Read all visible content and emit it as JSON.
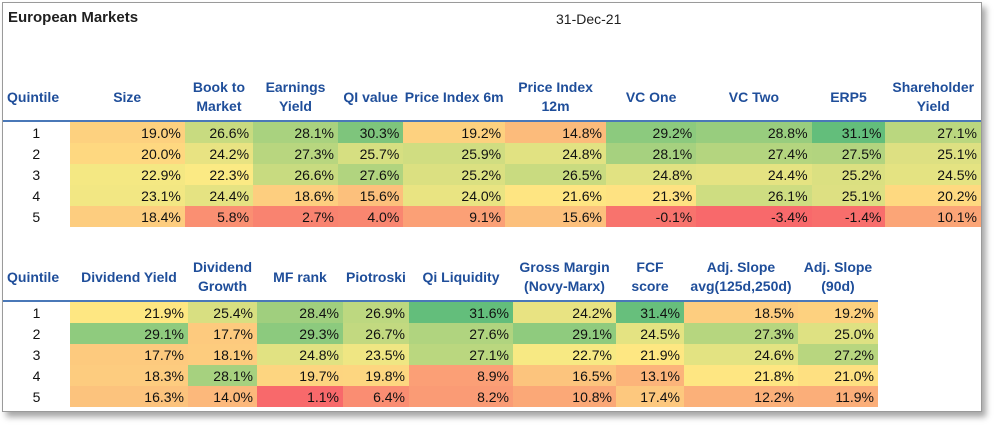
{
  "title": "European Markets",
  "date": "31-Dec-21",
  "table1": {
    "headers": [
      "Quintile",
      "Size",
      "Book to Market",
      "Earnings Yield",
      "QI value",
      "Price Index 6m",
      "Price Index 12m",
      "VC One",
      "VC Two",
      "ERP5",
      "Shareholder Yield"
    ],
    "rows": [
      {
        "q": "1",
        "cells": [
          {
            "v": "19.0%",
            "c": "#fdd17f"
          },
          {
            "v": "26.6%",
            "c": "#c8db80"
          },
          {
            "v": "28.1%",
            "c": "#a9d27f"
          },
          {
            "v": "30.3%",
            "c": "#7ec57c"
          },
          {
            "v": "19.2%",
            "c": "#fdd17f"
          },
          {
            "v": "14.8%",
            "c": "#fcbb7b"
          },
          {
            "v": "29.2%",
            "c": "#8cca7e"
          },
          {
            "v": "28.8%",
            "c": "#98cd7e"
          },
          {
            "v": "31.1%",
            "c": "#63be7b"
          },
          {
            "v": "27.1%",
            "c": "#bad77f"
          }
        ]
      },
      {
        "q": "2",
        "cells": [
          {
            "v": "20.0%",
            "c": "#fed880"
          },
          {
            "v": "24.2%",
            "c": "#e8e382"
          },
          {
            "v": "27.3%",
            "c": "#b8d67f"
          },
          {
            "v": "25.7%",
            "c": "#d6df81"
          },
          {
            "v": "25.9%",
            "c": "#d0dd81"
          },
          {
            "v": "24.8%",
            "c": "#e1e282"
          },
          {
            "v": "28.1%",
            "c": "#a6d17f"
          },
          {
            "v": "27.4%",
            "c": "#b4d57f"
          },
          {
            "v": "27.5%",
            "c": "#b2d47f"
          },
          {
            "v": "25.1%",
            "c": "#dde082"
          }
        ]
      },
      {
        "q": "3",
        "cells": [
          {
            "v": "22.9%",
            "c": "#f4e883"
          },
          {
            "v": "22.3%",
            "c": "#fbea84"
          },
          {
            "v": "26.6%",
            "c": "#c8db80"
          },
          {
            "v": "27.6%",
            "c": "#b1d47f"
          },
          {
            "v": "25.2%",
            "c": "#dbe081"
          },
          {
            "v": "26.5%",
            "c": "#c9db80"
          },
          {
            "v": "24.8%",
            "c": "#e1e282"
          },
          {
            "v": "24.4%",
            "c": "#e5e382"
          },
          {
            "v": "25.2%",
            "c": "#dbe081"
          },
          {
            "v": "24.5%",
            "c": "#e4e382"
          }
        ]
      },
      {
        "q": "4",
        "cells": [
          {
            "v": "23.1%",
            "c": "#f2e783"
          },
          {
            "v": "24.4%",
            "c": "#e5e382"
          },
          {
            "v": "18.6%",
            "c": "#fdce7f"
          },
          {
            "v": "15.6%",
            "c": "#fcc07c"
          },
          {
            "v": "24.0%",
            "c": "#e9e482"
          },
          {
            "v": "21.6%",
            "c": "#fee582"
          },
          {
            "v": "21.3%",
            "c": "#fee282"
          },
          {
            "v": "26.1%",
            "c": "#cedd81"
          },
          {
            "v": "25.1%",
            "c": "#dde082"
          },
          {
            "v": "20.2%",
            "c": "#fed980"
          }
        ]
      },
      {
        "q": "5",
        "cells": [
          {
            "v": "18.4%",
            "c": "#fdcd7f"
          },
          {
            "v": "5.8%",
            "c": "#fa8f72"
          },
          {
            "v": "2.7%",
            "c": "#f98370"
          },
          {
            "v": "4.0%",
            "c": "#f98670"
          },
          {
            "v": "9.1%",
            "c": "#fba076"
          },
          {
            "v": "15.6%",
            "c": "#fcc07c"
          },
          {
            "v": "-0.1%",
            "c": "#f8736d"
          },
          {
            "v": "-3.4%",
            "c": "#f8696b"
          },
          {
            "v": "-1.4%",
            "c": "#f86e6c"
          },
          {
            "v": "10.1%",
            "c": "#fba577"
          }
        ]
      }
    ]
  },
  "table2": {
    "headers": [
      "Quintile",
      "Dividend Yield",
      "Dividend Growth",
      "MF rank",
      "Piotroski",
      "Qi Liquidity",
      "Gross Margin (Novy-Marx)",
      "FCF score",
      "Adj. Slope avg(125d,250d)",
      "Adj. Slope (90d)"
    ],
    "rows": [
      {
        "q": "1",
        "cells": [
          {
            "v": "21.9%",
            "c": "#fee782"
          },
          {
            "v": "25.4%",
            "c": "#d8df81"
          },
          {
            "v": "28.4%",
            "c": "#a0cf7e"
          },
          {
            "v": "26.9%",
            "c": "#bdd880"
          },
          {
            "v": "31.6%",
            "c": "#63be7b"
          },
          {
            "v": "24.2%",
            "c": "#e8e382"
          },
          {
            "v": "31.4%",
            "c": "#67bf7c"
          },
          {
            "v": "18.5%",
            "c": "#fdcd7f"
          },
          {
            "v": "19.2%",
            "c": "#fdd17f"
          }
        ]
      },
      {
        "q": "2",
        "cells": [
          {
            "v": "29.1%",
            "c": "#8fcb7e"
          },
          {
            "v": "17.7%",
            "c": "#fdca7e"
          },
          {
            "v": "29.3%",
            "c": "#8cca7e"
          },
          {
            "v": "26.7%",
            "c": "#c2d980"
          },
          {
            "v": "27.6%",
            "c": "#b0d47f"
          },
          {
            "v": "29.1%",
            "c": "#8fcb7e"
          },
          {
            "v": "24.5%",
            "c": "#e4e382"
          },
          {
            "v": "27.3%",
            "c": "#b6d67f"
          },
          {
            "v": "25.0%",
            "c": "#dee182"
          }
        ]
      },
      {
        "q": "3",
        "cells": [
          {
            "v": "17.7%",
            "c": "#fdca7e"
          },
          {
            "v": "18.1%",
            "c": "#fdcc7e"
          },
          {
            "v": "24.8%",
            "c": "#e1e282"
          },
          {
            "v": "23.5%",
            "c": "#efe683"
          },
          {
            "v": "27.1%",
            "c": "#bad77f"
          },
          {
            "v": "22.7%",
            "c": "#f7e983"
          },
          {
            "v": "21.9%",
            "c": "#fee782"
          },
          {
            "v": "24.6%",
            "c": "#e3e382"
          },
          {
            "v": "27.2%",
            "c": "#b8d67f"
          }
        ]
      },
      {
        "q": "4",
        "cells": [
          {
            "v": "18.3%",
            "c": "#fdcc7f"
          },
          {
            "v": "28.1%",
            "c": "#a6d17f"
          },
          {
            "v": "19.7%",
            "c": "#fdd580"
          },
          {
            "v": "19.8%",
            "c": "#fdd680"
          },
          {
            "v": "8.9%",
            "c": "#fb9f76"
          },
          {
            "v": "16.5%",
            "c": "#fcc47d"
          },
          {
            "v": "13.1%",
            "c": "#fcb47a"
          },
          {
            "v": "21.8%",
            "c": "#fee682"
          },
          {
            "v": "21.0%",
            "c": "#fee081"
          }
        ]
      },
      {
        "q": "5",
        "cells": [
          {
            "v": "16.3%",
            "c": "#fcc37d"
          },
          {
            "v": "14.0%",
            "c": "#fcb87b"
          },
          {
            "v": "1.1%",
            "c": "#f8696b"
          },
          {
            "v": "6.4%",
            "c": "#fa8d72"
          },
          {
            "v": "8.2%",
            "c": "#fa9b75"
          },
          {
            "v": "10.8%",
            "c": "#fba877"
          },
          {
            "v": "17.4%",
            "c": "#fdc87e"
          },
          {
            "v": "12.2%",
            "c": "#fbb079"
          },
          {
            "v": "11.9%",
            "c": "#fbae79"
          }
        ]
      }
    ]
  }
}
